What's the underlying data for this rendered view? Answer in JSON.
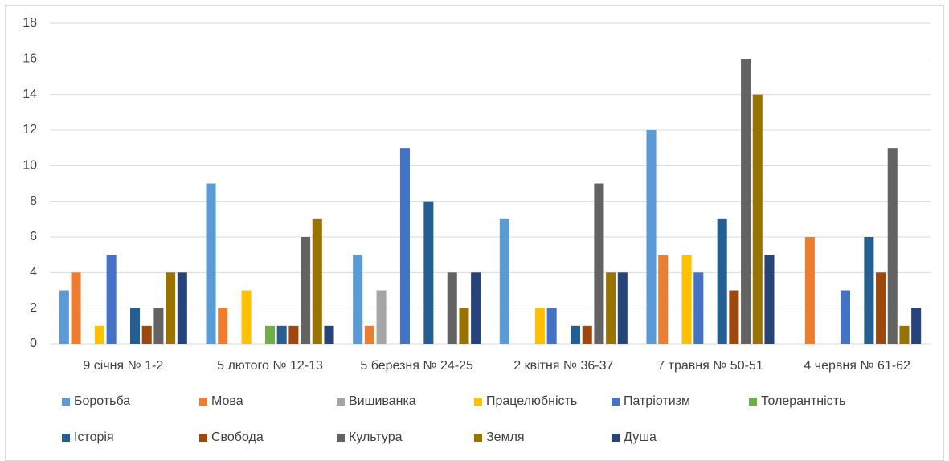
{
  "chart_data": {
    "type": "bar",
    "categories": [
      "9 січня № 1-2",
      "5 лютого № 12-13",
      "5 березня № 24-25",
      "2 квітня № 36-37",
      "7 травня № 50-51",
      "4 червня № 61-62"
    ],
    "series": [
      {
        "name": "Боротьба",
        "color": "#5b9bd5",
        "values": [
          3,
          9,
          5,
          7,
          12,
          0
        ]
      },
      {
        "name": "Мова",
        "color": "#ed7d31",
        "values": [
          4,
          2,
          1,
          0,
          5,
          6
        ]
      },
      {
        "name": "Вишиванка",
        "color": "#a5a5a5",
        "values": [
          0,
          0,
          3,
          0,
          0,
          0
        ]
      },
      {
        "name": "Працелюбність",
        "color": "#ffc000",
        "values": [
          1,
          3,
          0,
          2,
          5,
          0
        ]
      },
      {
        "name": "Патріотизм",
        "color": "#4472c4",
        "values": [
          5,
          0,
          11,
          2,
          4,
          3
        ]
      },
      {
        "name": "Толерантність",
        "color": "#70ad47",
        "values": [
          0,
          1,
          0,
          0,
          0,
          0
        ]
      },
      {
        "name": "Історія",
        "color": "#255e91",
        "values": [
          2,
          1,
          8,
          1,
          7,
          6
        ]
      },
      {
        "name": "Свобода",
        "color": "#9e480e",
        "values": [
          1,
          1,
          0,
          1,
          3,
          4
        ]
      },
      {
        "name": "Культура",
        "color": "#636363",
        "values": [
          2,
          6,
          4,
          9,
          16,
          11
        ]
      },
      {
        "name": "Земля",
        "color": "#997300",
        "values": [
          4,
          7,
          2,
          4,
          14,
          1
        ]
      },
      {
        "name": "Душа",
        "color": "#264478",
        "values": [
          4,
          1,
          4,
          4,
          5,
          2
        ]
      }
    ],
    "ylim": [
      0,
      18
    ],
    "yticks": [
      0,
      2,
      4,
      6,
      8,
      10,
      12,
      14,
      16,
      18
    ],
    "grid": true,
    "legend": "bottom"
  }
}
